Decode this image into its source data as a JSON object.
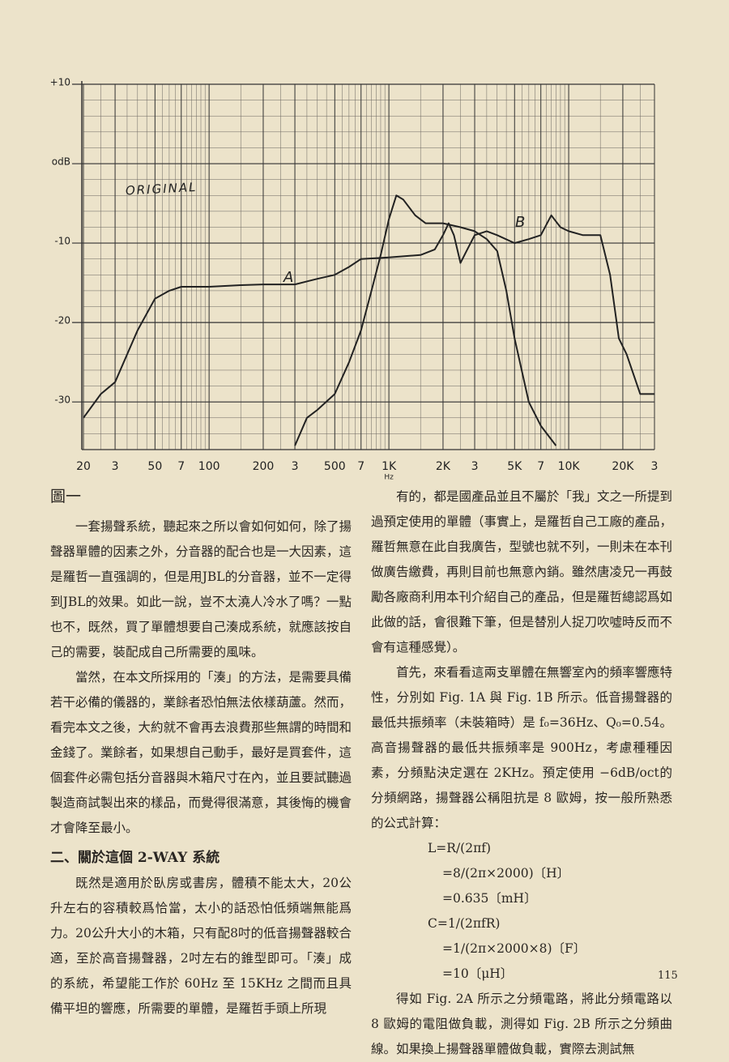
{
  "chart_data": {
    "type": "line",
    "annotation": "ORIGINAL",
    "x_label": "Hz",
    "log_x": true,
    "grid": true,
    "xlim": [
      20,
      30000
    ],
    "ylim": [
      -36,
      10
    ],
    "xticks": [
      20,
      {
        "value": 30,
        "label": "3"
      },
      50,
      {
        "value": 70,
        "label": "7"
      },
      100,
      200,
      {
        "value": 300,
        "label": "3"
      },
      500,
      {
        "value": 700,
        "label": "7"
      },
      {
        "value": 1000,
        "label": "1K"
      },
      {
        "value": 2000,
        "label": "2K"
      },
      {
        "value": 3000,
        "label": "3"
      },
      {
        "value": 5000,
        "label": "5K"
      },
      {
        "value": 7000,
        "label": "7"
      },
      {
        "value": 10000,
        "label": "10K"
      },
      {
        "value": 20000,
        "label": "20K"
      },
      {
        "value": 30000,
        "label": "3"
      }
    ],
    "yticks": [
      {
        "value": 10,
        "label": "+10"
      },
      {
        "value": 0,
        "label": "odB"
      },
      -10,
      -20,
      -30
    ],
    "series": [
      {
        "name": "A",
        "color": "#222",
        "x": [
          20,
          25,
          30,
          40,
          50,
          60,
          70,
          100,
          150,
          200,
          300,
          400,
          500,
          600,
          700,
          1000,
          1500,
          1800,
          2000,
          2150,
          2300,
          2500,
          2700,
          3000,
          3500,
          4000,
          5000,
          6000,
          7000,
          8000,
          9000,
          10000,
          12000,
          15000,
          17000,
          19000,
          21000,
          25000,
          30000
        ],
        "values": [
          -32,
          -29,
          -27.5,
          -21,
          -17,
          -16,
          -15.5,
          -15.5,
          -15.3,
          -15.2,
          -15.2,
          -14.5,
          -14,
          -13,
          -12,
          -11.8,
          -11.5,
          -10.8,
          -9,
          -7.5,
          -9,
          -12.5,
          -11,
          -9,
          -8.5,
          -9,
          -10,
          -9.5,
          -9,
          -6.5,
          -8,
          -8.5,
          -9,
          -9,
          -14,
          -22,
          -24,
          -29,
          -29
        ]
      },
      {
        "name": "B",
        "color": "#222",
        "x": [
          300,
          350,
          400,
          500,
          600,
          700,
          800,
          900,
          1000,
          1100,
          1200,
          1400,
          1600,
          2000,
          2500,
          3000,
          3500,
          4000,
          4500,
          5000,
          6000,
          7000,
          8500
        ],
        "values": [
          -35.5,
          -32,
          -31,
          -29,
          -25,
          -21,
          -16,
          -11.5,
          -7,
          -4,
          -4.5,
          -6.5,
          -7.5,
          -7.5,
          -8,
          -8.5,
          -9.5,
          -11,
          -16,
          -22,
          -30,
          -33,
          -35.5
        ]
      }
    ]
  },
  "left": {
    "caption": "圖一",
    "paragraphs": [
      "一套揚聲系統，聽起來之所以會如何如何，除了揚聲器單體的因素之外，分音器的配合也是一大因素，這是羅哲一直强調的，但是用JBL的分音器，並不一定得到JBL的效果。如此一說，豈不太澆人冷水了嗎？一點也不，既然，買了單體想要自己湊成系統，就應該按自己的需要，裝配成自己所需要的風味。",
      "當然，在本文所採用的「湊」的方法，是需要具備若干必備的儀器的，業餘者恐怕無法依樣葫蘆。然而，看完本文之後，大約就不會再去浪費那些無謂的時間和金錢了。業餘者，如果想自己動手，最好是買套件，這個套件必需包括分音器與木箱尺寸在內，並且要試聽過製造商試製出來的樣品，而覺得很滿意，其後悔的機會才會降至最小。"
    ],
    "heading": "二、關於這個 2-WAY 系統",
    "paragraphs2": [
      "既然是適用於臥房或書房，體積不能太大，20公升左右的容積較爲恰當，太小的話恐怕低頻端無能爲力。20公升大小的木箱，只有配8吋的低音揚聲器較合適，至於高音揚聲器，2吋左右的錐型即可。「湊」成的系統，希望能工作於 60Hz 至 15KHz 之間而且具備平坦的響應，所需要的單體，是羅哲手頭上所現"
    ]
  },
  "right": {
    "paragraphs": [
      "有的，都是國產品並且不屬於「我」文之一所提到過預定使用的單體（事實上，是羅哲自己工廠的產品，羅哲無意在此自我廣告，型號也就不列，一則未在本刊做廣告繳費，再則目前也無意內銷。雖然唐凌兄一再鼓勵各廠商利用本刊介紹自己的產品，但是羅哲總認爲如此做的話，會很難下筆，但是替別人捉刀吹噓時反而不會有這種感覺）。",
      "首先，來看看這兩支單體在無響室內的頻率響應特性，分別如 Fig. 1A 與 Fig. 1B 所示。低音揚聲器的最低共振頻率（未裝箱時）是 f₀=36Hz、Q₀=0.54。高音揚聲器的最低共振頻率是 900Hz，考慮種種因素，分頻點決定選在 2KHz。預定使用 −6dB/oct的分頻網路，揚聲器公稱阻抗是 8 歐姆，按一般所熟悉的公式計算："
    ],
    "formulas": [
      "L=R/(2πf)",
      "=8/(2π×2000)〔H〕",
      "=0.635〔mH〕",
      "C=1/(2πfR)",
      "=1/(2π×2000×8)〔F〕",
      "=10〔μH〕"
    ],
    "paragraphs2": [
      "得如 Fig. 2A 所示之分頻電路，將此分頻電路以 8 歐姆的電阻做負載，測得如 Fig. 2B 所示之分頻曲線。如果換上揚聲器單體做負載，實際去測試無"
    ]
  },
  "page_number": "115"
}
